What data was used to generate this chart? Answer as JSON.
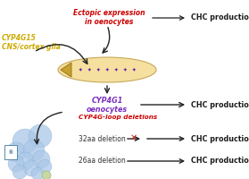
{
  "bg_color": "#ffffff",
  "cyp4g15_text": "CYP4G15\nCNS/cortex glia",
  "cyp4g15_color": "#ccaa00",
  "ectopic_text": "Ectopic expression\nin oenocytes",
  "ectopic_color": "#cc0000",
  "cyp4g1_text": "CYP4G1\noenocytes",
  "cyp4g1_color": "#7b2fbe",
  "loop_text": "CYP4G-loop deletions",
  "loop_color": "#cc0000",
  "chc_color": "#1a1a1a",
  "arrow_color": "#222222",
  "del32_text": "32aa deletion",
  "del26_text": "26aa deletion",
  "chc_text": "CHC production",
  "oenocyte_body_color": "#f5e0a0",
  "oenocyte_head_color": "#c8a030",
  "symbol_color": "#6622aa",
  "cross_color": "#cc2222",
  "protein_color": "#aac8e8",
  "protein_edge": "#88aacc"
}
